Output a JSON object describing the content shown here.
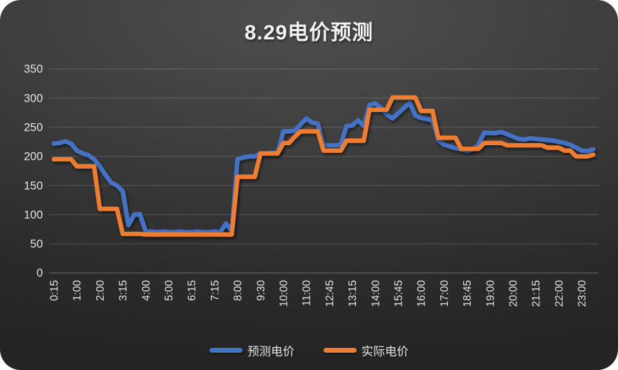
{
  "chart_data": {
    "type": "line",
    "title": "8.29电价预测",
    "x_axis": {
      "tick_labels": [
        "0:15",
        "1:00",
        "2:00",
        "3:15",
        "4:00",
        "5:00",
        "6:15",
        "7:15",
        "8:00",
        "9:30",
        "10:00",
        "11:00",
        "12:45",
        "13:15",
        "14:00",
        "15:45",
        "16:00",
        "17:00",
        "18:45",
        "19:00",
        "20:00",
        "21:15",
        "22:00",
        "23:00"
      ],
      "points_per_tick": 4,
      "label_rotation_deg": -90
    },
    "y_axis": {
      "ylim": [
        0,
        350
      ],
      "tick_step": 50,
      "tick_labels": [
        "0",
        "50",
        "100",
        "150",
        "200",
        "250",
        "300",
        "350"
      ]
    },
    "grid": true,
    "legend_position": "bottom",
    "series": [
      {
        "key": "forecast",
        "name": "预测电价",
        "color": "#4472C4",
        "values": [
          222,
          223,
          226,
          222,
          210,
          205,
          202,
          195,
          183,
          168,
          155,
          150,
          140,
          82,
          100,
          101,
          71,
          71,
          70,
          71,
          70,
          70,
          71,
          70,
          70,
          71,
          70,
          70,
          71,
          70,
          85,
          72,
          195,
          198,
          200,
          200,
          205,
          205,
          206,
          206,
          243,
          243,
          244,
          255,
          265,
          258,
          256,
          220,
          219,
          219,
          220,
          252,
          253,
          262,
          252,
          288,
          291,
          283,
          272,
          265,
          274,
          283,
          292,
          270,
          266,
          264,
          262,
          228,
          220,
          217,
          214,
          212,
          209,
          212,
          220,
          241,
          240,
          240,
          242,
          238,
          234,
          230,
          229,
          231,
          230,
          229,
          228,
          227,
          225,
          223,
          220,
          215,
          210,
          209,
          212
        ]
      },
      {
        "key": "actual",
        "name": "实际电价",
        "color": "#ED7D31",
        "values": [
          195,
          195,
          195,
          195,
          183,
          183,
          183,
          183,
          110,
          110,
          110,
          110,
          67,
          67,
          67,
          67,
          66,
          66,
          66,
          66,
          66,
          66,
          66,
          66,
          66,
          66,
          66,
          66,
          66,
          66,
          66,
          66,
          165,
          165,
          165,
          165,
          205,
          205,
          205,
          205,
          223,
          223,
          234,
          243,
          243,
          243,
          243,
          210,
          210,
          210,
          210,
          227,
          227,
          227,
          227,
          280,
          280,
          280,
          280,
          301,
          301,
          301,
          301,
          301,
          278,
          278,
          278,
          232,
          232,
          232,
          232,
          213,
          213,
          213,
          213,
          223,
          223,
          223,
          223,
          219,
          219,
          219,
          219,
          219,
          219,
          219,
          215,
          215,
          215,
          210,
          210,
          200,
          200,
          200,
          203
        ]
      }
    ],
    "style": {
      "background_top": "#4f4f4f",
      "background_bottom": "#242424",
      "gridline_color": "rgba(255,255,255,0.18)",
      "axis_text_color": "#e3e3e3",
      "title_color": "#f2f2f2"
    }
  }
}
